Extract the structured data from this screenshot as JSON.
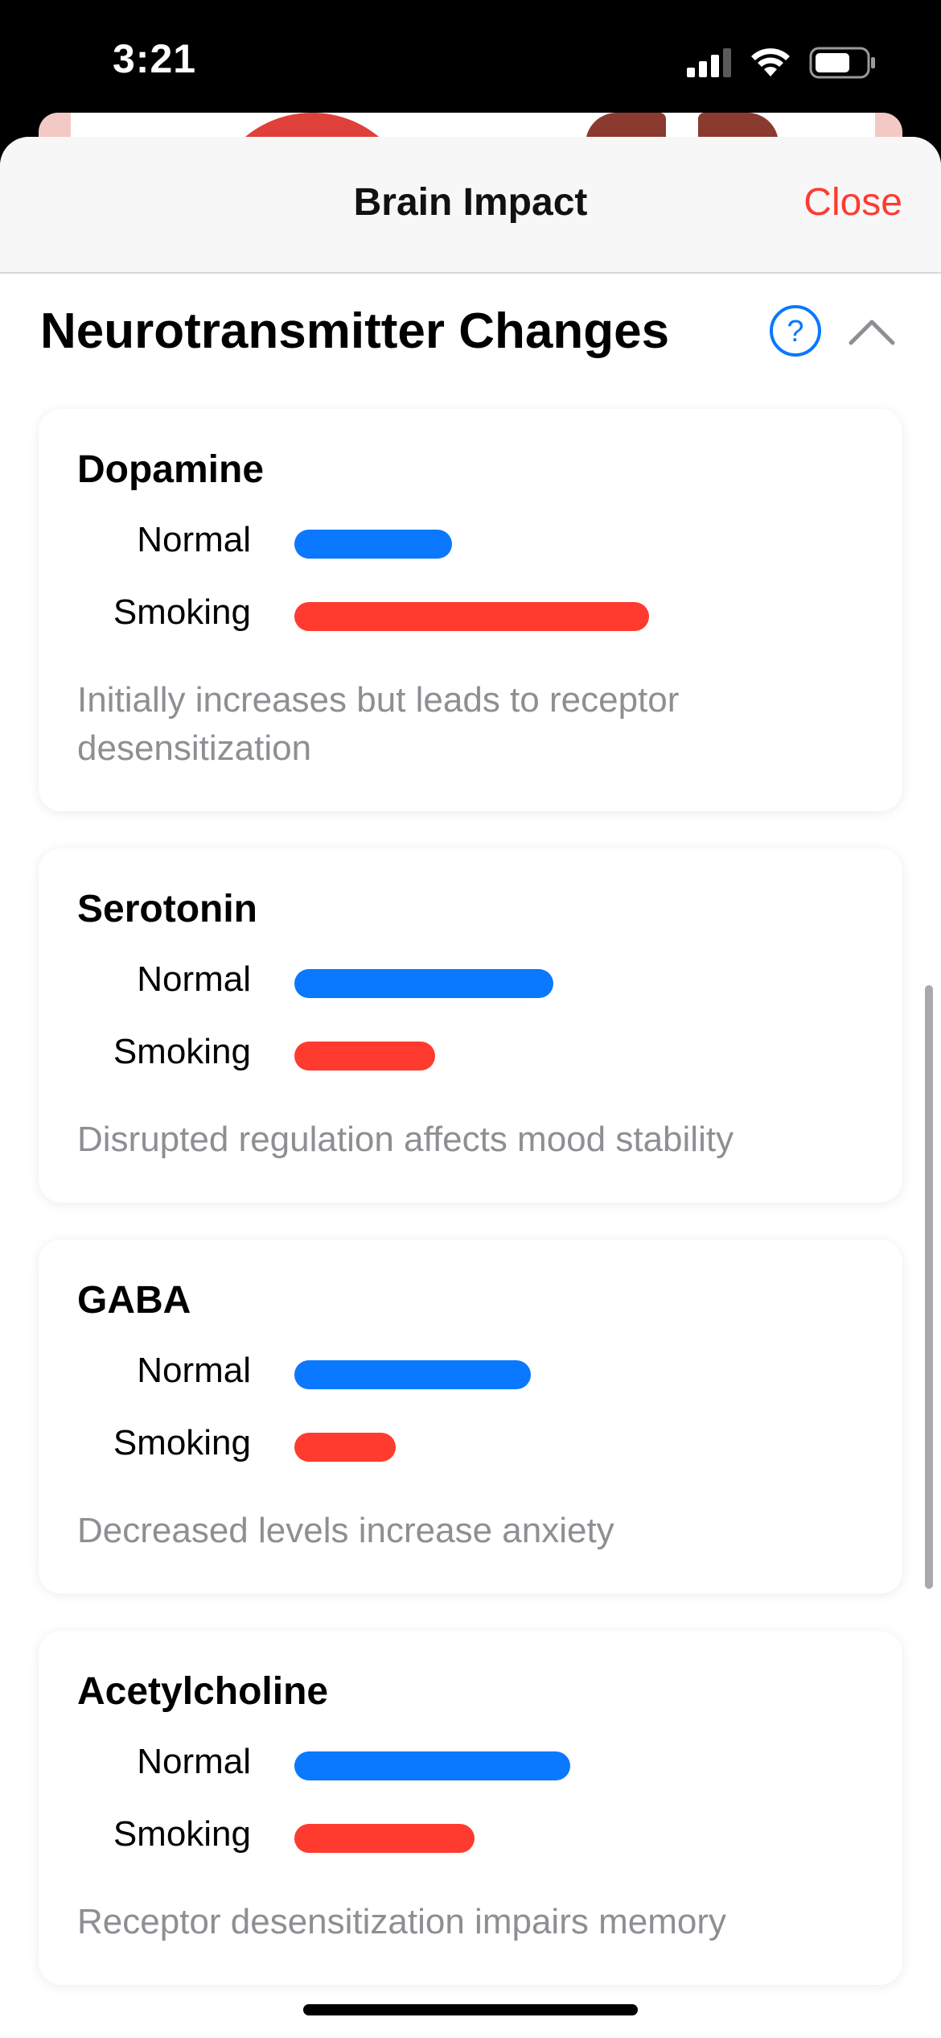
{
  "status_bar": {
    "time": "3:21"
  },
  "nav": {
    "title": "Brain Impact",
    "close_label": "Close"
  },
  "section": {
    "title": "Neurotransmitter Changes"
  },
  "labels": {
    "normal": "Normal",
    "smoking": "Smoking"
  },
  "colors": {
    "normal": "#0a78ff",
    "smoking": "#ff3b30",
    "close": "#ff3b30",
    "help": "#0a78ff"
  },
  "cards": [
    {
      "name": "Dopamine",
      "normal_level": 0.28,
      "smoking_level": 0.63,
      "description": "Initially increases but leads to receptor desensitization"
    },
    {
      "name": "Serotonin",
      "normal_level": 0.46,
      "smoking_level": 0.25,
      "description": "Disrupted regulation affects mood stability"
    },
    {
      "name": "GABA",
      "normal_level": 0.42,
      "smoking_level": 0.18,
      "description": "Decreased levels increase anxiety"
    },
    {
      "name": "Acetylcholine",
      "normal_level": 0.49,
      "smoking_level": 0.32,
      "description": "Receptor desensitization impairs memory"
    }
  ]
}
